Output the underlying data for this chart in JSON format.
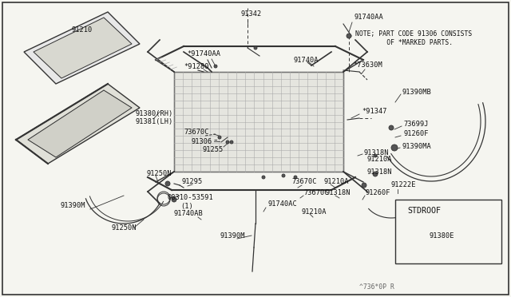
{
  "bg_color": "#f5f5f0",
  "line_color": "#333333",
  "text_color": "#111111",
  "note_line1": "NOTE; PART CODE 91306 CONSISTS",
  "note_line2": "      OF *MARKED PARTS.",
  "footer": "^736*0P R",
  "stdroof": "STDROOF",
  "part_91380E": "91380E",
  "figsize": [
    6.4,
    3.72
  ],
  "dpi": 100
}
